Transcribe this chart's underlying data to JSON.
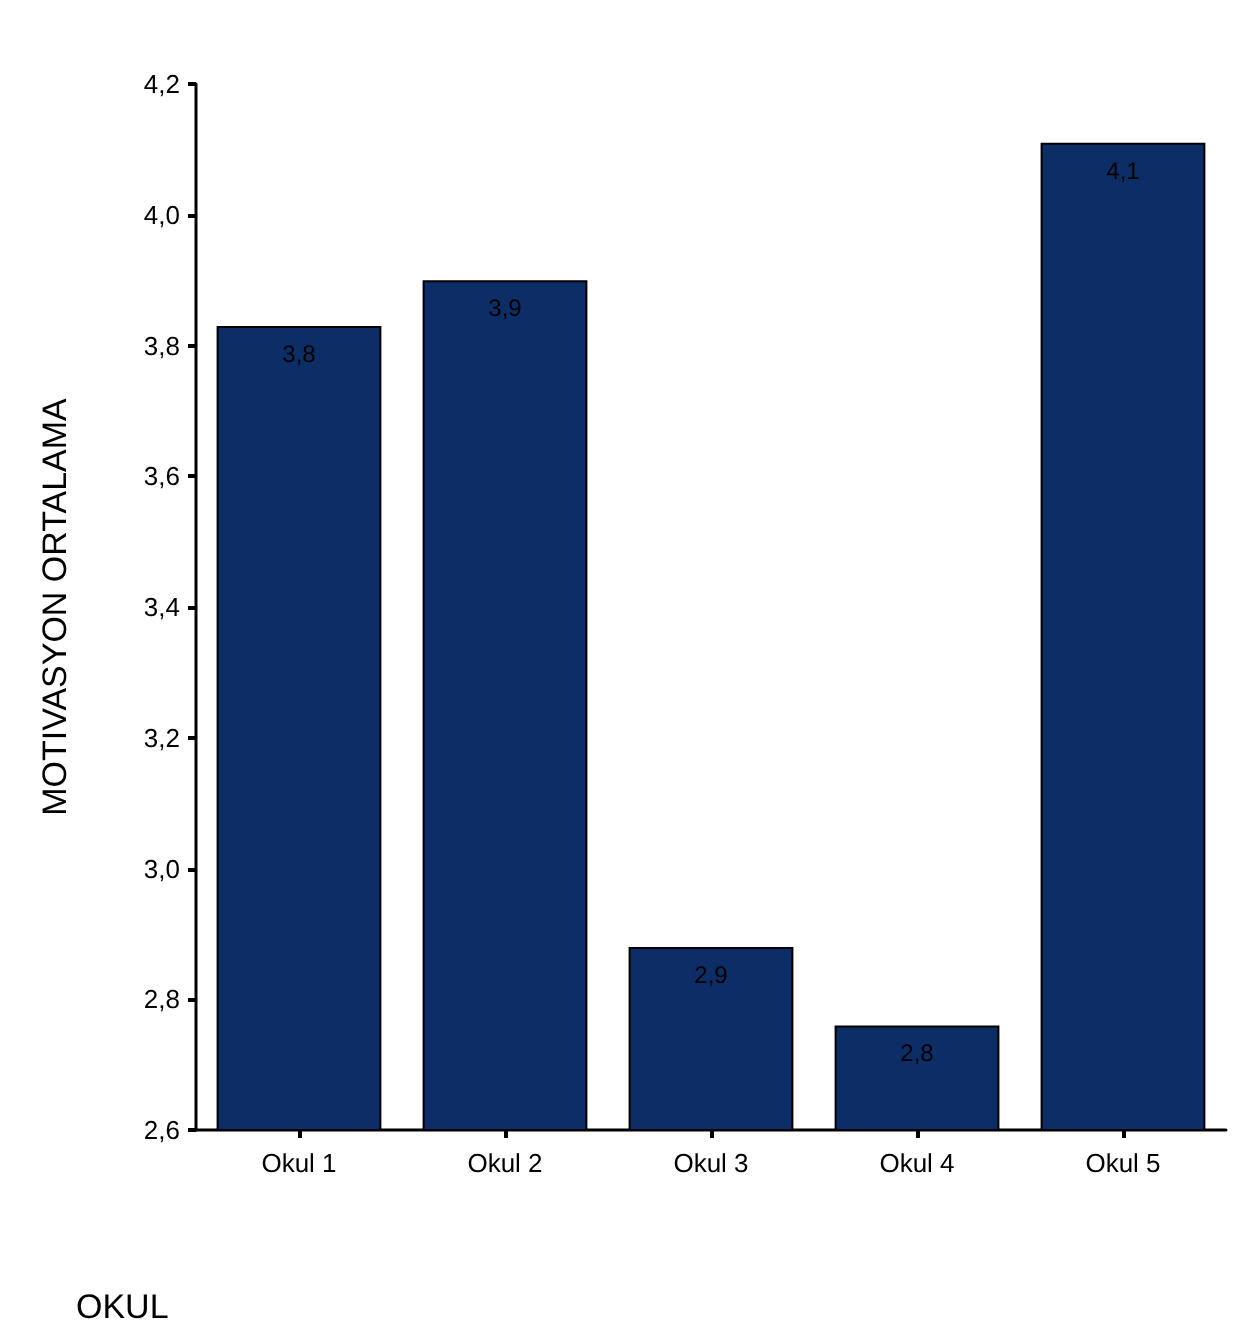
{
  "chart_data": {
    "type": "bar",
    "xlabel": "OKUL",
    "ylabel": "MOTIVASYON ORTALAMA",
    "categories": [
      "Okul 1",
      "Okul 2",
      "Okul 3",
      "Okul 4",
      "Okul 5"
    ],
    "values": [
      3.83,
      3.9,
      2.88,
      2.76,
      4.11
    ],
    "value_labels": [
      "3,8",
      "3,9",
      "2,9",
      "2,8",
      "4,1"
    ],
    "color": "#0d2d66",
    "ylim": [
      2.6,
      4.2
    ],
    "yticks": [
      {
        "value": 2.6,
        "label": "2,6"
      },
      {
        "value": 2.8,
        "label": "2,8"
      },
      {
        "value": 3.0,
        "label": "3,0"
      },
      {
        "value": 3.2,
        "label": "3,2"
      },
      {
        "value": 3.4,
        "label": "3,4"
      },
      {
        "value": 3.6,
        "label": "3,6"
      },
      {
        "value": 3.8,
        "label": "3,8"
      },
      {
        "value": 4.0,
        "label": "4,0"
      },
      {
        "value": 4.2,
        "label": "4,2"
      }
    ],
    "grid": false
  }
}
